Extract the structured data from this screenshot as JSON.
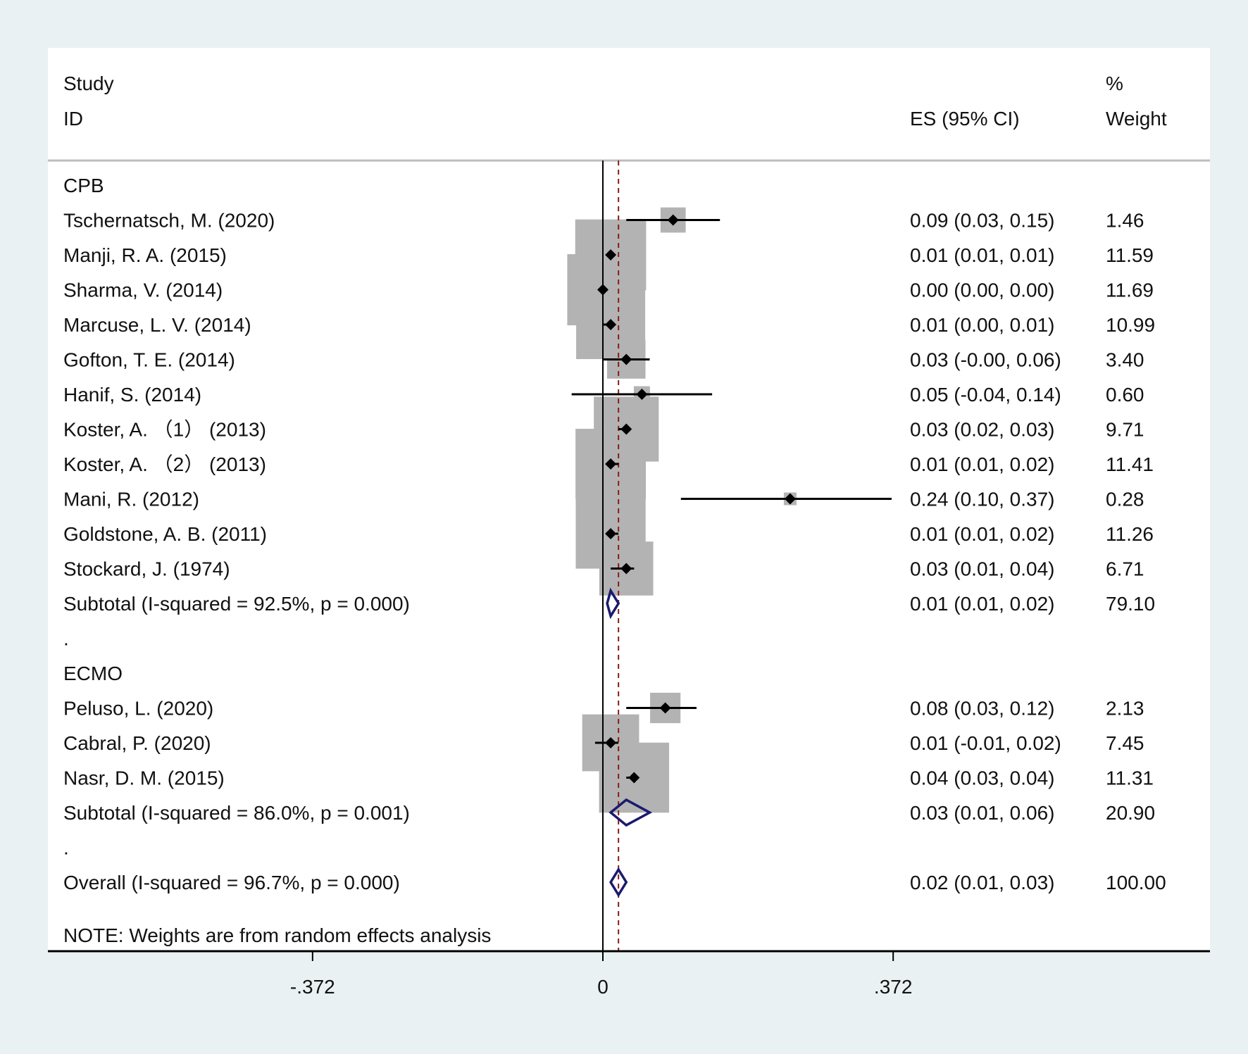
{
  "colors": {
    "background": "#eaf1f2",
    "panel": "#ffffff",
    "weight_box": "#b3b3b3",
    "point": "#000000",
    "ci_line": "#000000",
    "diamond": "#1a1a6e",
    "overall_line": "#8b1a1a"
  },
  "header": {
    "study_label": "Study",
    "id_label": "ID",
    "es_label": "ES (95% CI)",
    "pct_label": "%",
    "weight_label": "Weight"
  },
  "note": "NOTE: Weights are from random effects analysis",
  "chart_data": {
    "type": "forest",
    "xlim": [
      -0.372,
      0.372
    ],
    "xticks": [
      -0.372,
      0,
      0.372
    ],
    "xtick_labels": [
      "-.372",
      "0",
      ".372"
    ],
    "null_line": 0,
    "overall_es_line": 0.02,
    "rows": [
      {
        "kind": "group",
        "label": "CPB"
      },
      {
        "kind": "study",
        "label": "Tschernatsch, M. (2020)",
        "es": 0.09,
        "lo": 0.03,
        "hi": 0.15,
        "es_text": "0.09 (0.03, 0.15)",
        "weight": 1.46,
        "weight_text": "1.46"
      },
      {
        "kind": "study",
        "label": "Manji, R. A. (2015)",
        "es": 0.01,
        "lo": 0.01,
        "hi": 0.01,
        "es_text": "0.01 (0.01, 0.01)",
        "weight": 11.59,
        "weight_text": "11.59"
      },
      {
        "kind": "study",
        "label": "Sharma, V. (2014)",
        "es": 0.0,
        "lo": 0.0,
        "hi": 0.0,
        "es_text": "0.00 (0.00, 0.00)",
        "weight": 11.69,
        "weight_text": "11.69"
      },
      {
        "kind": "study",
        "label": "Marcuse, L. V. (2014)",
        "es": 0.01,
        "lo": 0.0,
        "hi": 0.01,
        "es_text": "0.01 (0.00, 0.01)",
        "weight": 10.99,
        "weight_text": "10.99"
      },
      {
        "kind": "study",
        "label": "Gofton, T. E. (2014)",
        "es": 0.03,
        "lo": -0.0,
        "hi": 0.06,
        "es_text": "0.03 (-0.00, 0.06)",
        "weight": 3.4,
        "weight_text": "3.40"
      },
      {
        "kind": "study",
        "label": "Hanif, S. (2014)",
        "es": 0.05,
        "lo": -0.04,
        "hi": 0.14,
        "es_text": "0.05 (-0.04, 0.14)",
        "weight": 0.6,
        "weight_text": "0.60"
      },
      {
        "kind": "study",
        "label": "Koster, A. （1） (2013)",
        "es": 0.03,
        "lo": 0.02,
        "hi": 0.03,
        "es_text": "0.03 (0.02, 0.03)",
        "weight": 9.71,
        "weight_text": "9.71"
      },
      {
        "kind": "study",
        "label": "Koster, A. （2） (2013)",
        "es": 0.01,
        "lo": 0.01,
        "hi": 0.02,
        "es_text": "0.01 (0.01, 0.02)",
        "weight": 11.41,
        "weight_text": "11.41"
      },
      {
        "kind": "study",
        "label": "Mani, R. (2012)",
        "es": 0.24,
        "lo": 0.1,
        "hi": 0.37,
        "es_text": "0.24 (0.10, 0.37)",
        "weight": 0.28,
        "weight_text": "0.28"
      },
      {
        "kind": "study",
        "label": "Goldstone, A. B. (2011)",
        "es": 0.01,
        "lo": 0.01,
        "hi": 0.02,
        "es_text": "0.01 (0.01, 0.02)",
        "weight": 11.26,
        "weight_text": "11.26"
      },
      {
        "kind": "study",
        "label": "Stockard, J. (1974)",
        "es": 0.03,
        "lo": 0.01,
        "hi": 0.04,
        "es_text": "0.03 (0.01, 0.04)",
        "weight": 6.71,
        "weight_text": "6.71"
      },
      {
        "kind": "subtotal",
        "label": "Subtotal  (I-squared = 92.5%, p = 0.000)",
        "es": 0.01,
        "lo": 0.01,
        "hi": 0.02,
        "es_text": "0.01 (0.01, 0.02)",
        "weight": 79.1,
        "weight_text": "79.10"
      },
      {
        "kind": "spacer",
        "label": "."
      },
      {
        "kind": "group",
        "label": "ECMO"
      },
      {
        "kind": "study",
        "label": "Peluso, L. (2020)",
        "es": 0.08,
        "lo": 0.03,
        "hi": 0.12,
        "es_text": "0.08 (0.03, 0.12)",
        "weight": 2.13,
        "weight_text": "2.13"
      },
      {
        "kind": "study",
        "label": "Cabral, P. (2020)",
        "es": 0.01,
        "lo": -0.01,
        "hi": 0.02,
        "es_text": "0.01 (-0.01, 0.02)",
        "weight": 7.45,
        "weight_text": "7.45"
      },
      {
        "kind": "study",
        "label": "Nasr, D. M. (2015)",
        "es": 0.04,
        "lo": 0.03,
        "hi": 0.04,
        "es_text": "0.04 (0.03, 0.04)",
        "weight": 11.31,
        "weight_text": "11.31"
      },
      {
        "kind": "subtotal",
        "label": "Subtotal  (I-squared = 86.0%, p = 0.001)",
        "es": 0.03,
        "lo": 0.01,
        "hi": 0.06,
        "es_text": "0.03 (0.01, 0.06)",
        "weight": 20.9,
        "weight_text": "20.90"
      },
      {
        "kind": "spacer",
        "label": "."
      },
      {
        "kind": "overall",
        "label": "Overall  (I-squared = 96.7%, p = 0.000)",
        "es": 0.02,
        "lo": 0.01,
        "hi": 0.03,
        "es_text": "0.02 (0.01, 0.03)",
        "weight": 100.0,
        "weight_text": "100.00"
      }
    ]
  }
}
